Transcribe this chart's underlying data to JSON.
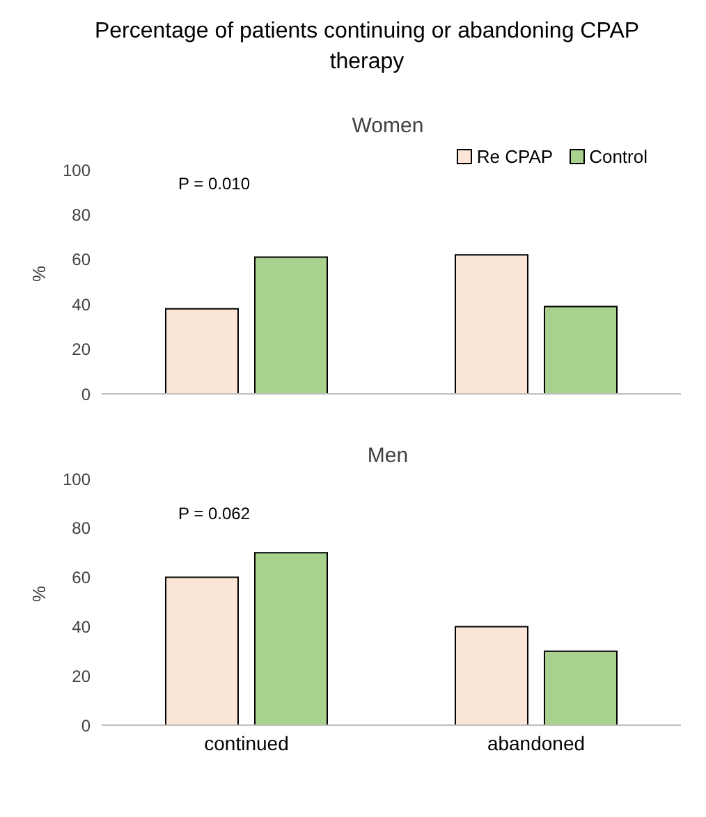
{
  "chart_data": [
    {
      "type": "bar",
      "title": "Percentage of patients continuing or abandoning CPAP therapy",
      "subtitle": "Women",
      "ylabel": "%",
      "categories": [
        null,
        null
      ],
      "series": [
        {
          "name": "Re CPAP",
          "color": "#fbe5d6",
          "values": [
            38,
            62
          ]
        },
        {
          "name": "Control",
          "color": "#a9d18e",
          "values": [
            61,
            39
          ]
        }
      ],
      "ylim": [
        0,
        100
      ],
      "yticks": [
        0,
        20,
        40,
        60,
        80,
        100
      ],
      "legend": "top right",
      "tick_labels": "y",
      "annotations": [
        "P = 0.010"
      ]
    },
    {
      "type": "bar",
      "title": "Men",
      "ylabel": "%",
      "categories": [
        "continued",
        "abandoned"
      ],
      "series": [
        {
          "color": "#fbe5d6",
          "values": [
            60,
            40
          ]
        },
        {
          "color": "#a9d18e",
          "values": [
            70,
            30
          ]
        }
      ],
      "ylim": [
        0,
        100
      ],
      "yticks": [
        0,
        20,
        40,
        60,
        80,
        100
      ],
      "annotations": [
        "P = 0.062"
      ]
    }
  ]
}
